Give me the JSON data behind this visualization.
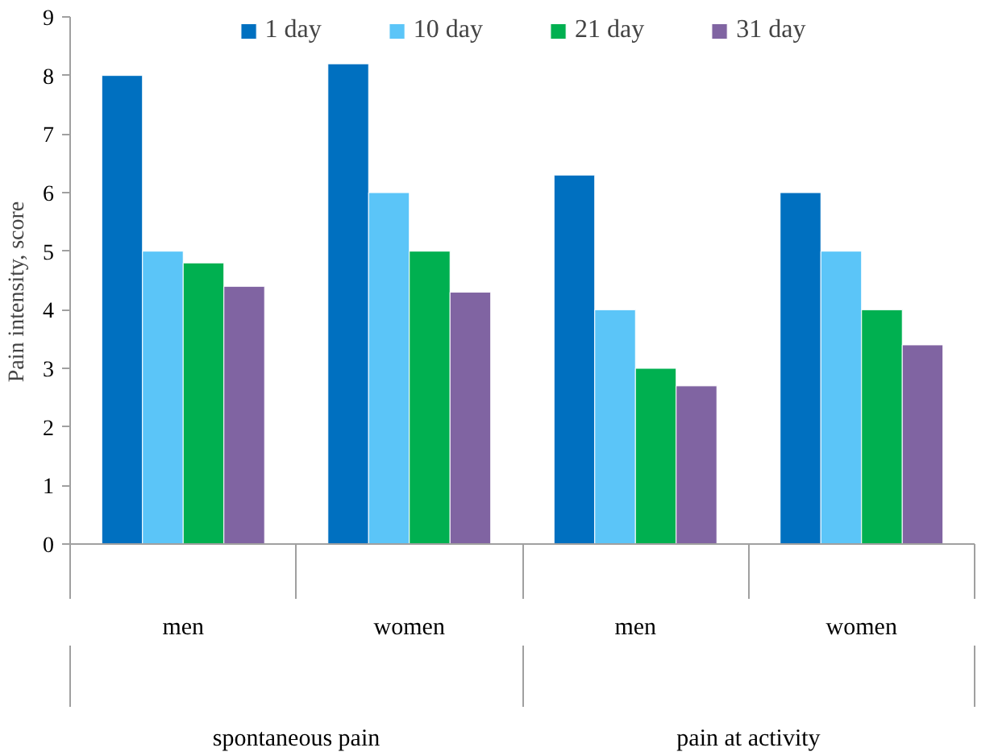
{
  "chart_data": {
    "type": "bar",
    "ylabel": "Pain   intensity,   score",
    "categories": [
      "men",
      "women",
      "men",
      "women"
    ],
    "series": [
      {
        "name": "1 day",
        "color": "#0070c0",
        "values": [
          8,
          8.2,
          6.3,
          6
        ]
      },
      {
        "name": "10 day",
        "color": "#5bc5f8",
        "values": [
          5,
          6,
          4,
          5
        ]
      },
      {
        "name": "21 day",
        "color": "#00b050",
        "values": [
          4.8,
          5,
          3,
          4
        ]
      },
      {
        "name": "31 day",
        "color": "#8064a2",
        "values": [
          4.4,
          4.3,
          2.7,
          3.4
        ]
      }
    ],
    "annotations": [
      "spontaneous pain",
      "pain at activity"
    ],
    "ylim": [
      0,
      9
    ],
    "yticks": [
      0,
      1,
      2,
      3,
      4,
      5,
      6,
      7,
      8,
      9
    ],
    "grid": false,
    "legend": "top"
  }
}
